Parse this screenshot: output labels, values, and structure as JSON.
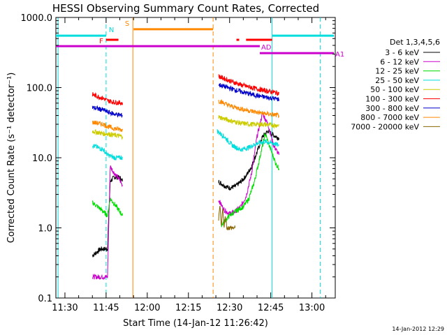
{
  "chart_data": {
    "type": "line",
    "title": "HESSI Observing Summary Count Rates, Corrected",
    "xlabel": "Start Time (14-Jan-12 11:26:42)",
    "ylabel": "Corrected Count Rate (s⁻¹ detector⁻¹)",
    "footer": "14-Jan-2012 12:29",
    "y_scale": "log",
    "ylim": [
      0.1,
      1000
    ],
    "xlim": [
      "11:26:42",
      "13:08:30"
    ],
    "grid": false,
    "legend_position": "right",
    "legend_title": "Det 1,3,4,5,6",
    "x_ticks": [
      "11:30",
      "11:45",
      "12:00",
      "12:15",
      "12:30",
      "12:45",
      "13:00"
    ],
    "y_ticks": [
      "0.1",
      "1.0",
      "10.0",
      "100.0",
      "1000.0"
    ],
    "series": [
      {
        "name": "3 - 6 keV",
        "color": "#000000",
        "segments": [
          {
            "x": [
              "11:40:00",
              "11:43:00",
              "11:44:00",
              "11:45:30",
              "11:46:30",
              "11:48:00",
              "11:50:00",
              "11:51:00"
            ],
            "y": [
              0.4,
              0.5,
              0.5,
              0.5,
              4.6,
              5.3,
              5.2,
              4.6
            ]
          },
          {
            "x": [
              "12:26:00",
              "12:28:00",
              "12:30:00",
              "12:32:00",
              "12:34:00",
              "12:36:00",
              "12:38:00",
              "12:40:00",
              "12:42:00",
              "12:44:00",
              "12:46:00",
              "12:48:00"
            ],
            "y": [
              4.6,
              4.0,
              3.7,
              3.9,
              4.5,
              5.5,
              7.5,
              12,
              20,
              24,
              21,
              19
            ]
          }
        ]
      },
      {
        "name": "6 - 12 keV",
        "color": "#cc00cc",
        "segments": [
          {
            "x": [
              "11:40:00",
              "11:42:00",
              "11:44:00",
              "11:45:30",
              "11:46:30",
              "11:48:00",
              "11:50:00",
              "11:51:00"
            ],
            "y": [
              0.2,
              0.2,
              0.2,
              0.2,
              7.5,
              6.0,
              4.8,
              4.0
            ]
          },
          {
            "x": [
              "12:26:00",
              "12:28:00",
              "12:30:00",
              "12:32:00",
              "12:34:00",
              "12:36:00",
              "12:38:00",
              "12:40:00",
              "12:42:00",
              "12:44:00",
              "12:46:00",
              "12:48:00"
            ],
            "y": [
              2.5,
              1.8,
              1.6,
              1.7,
              2.0,
              2.8,
              6,
              20,
              43,
              30,
              15,
              11
            ]
          }
        ]
      },
      {
        "name": "12 - 25 keV",
        "color": "#00dd00",
        "segments": [
          {
            "x": [
              "11:40:00",
              "11:42:00",
              "11:44:00",
              "11:45:30",
              "11:46:30",
              "11:48:00",
              "11:50:00",
              "11:51:00"
            ],
            "y": [
              2.3,
              2.0,
              1.7,
              1.5,
              2.6,
              2.2,
              1.7,
              1.5
            ]
          },
          {
            "x": [
              "12:27:00",
              "12:30:00",
              "12:33:00",
              "12:35:00",
              "12:37:00",
              "12:39:00",
              "12:41:00",
              "12:43:00",
              "12:45:00",
              "12:47:00",
              "12:48:00"
            ],
            "y": [
              1.1,
              1.5,
              1.8,
              2.0,
              2.6,
              4.5,
              10,
              22,
              13,
              8,
              7
            ]
          }
        ]
      },
      {
        "name": "25 - 50 keV",
        "color": "#00dddd",
        "segments": [
          {
            "x": [
              "11:40:00",
              "11:44:00",
              "11:45:30",
              "11:48:00",
              "11:51:00"
            ],
            "y": [
              15,
              13,
              11,
              10,
              10
            ]
          },
          {
            "x": [
              "12:25:30",
              "12:28:00",
              "12:31:00",
              "12:34:00",
              "12:37:00",
              "12:40:00",
              "12:43:00",
              "12:46:00",
              "12:48:00"
            ],
            "y": [
              24,
              20,
              15,
              13,
              14,
              16,
              17,
              16,
              15
            ]
          }
        ]
      },
      {
        "name": "50 - 100 keV",
        "color": "#cccc00",
        "segments": [
          {
            "x": [
              "11:40:00",
              "11:44:00",
              "11:45:30",
              "11:48:00",
              "11:51:00"
            ],
            "y": [
              24,
              22,
              22,
              21,
              20
            ]
          },
          {
            "x": [
              "12:26:00",
              "12:30:00",
              "12:34:00",
              "12:38:00",
              "12:42:00",
              "12:46:00",
              "12:48:00"
            ],
            "y": [
              38,
              34,
              31,
              30,
              30,
              29,
              29
            ]
          }
        ]
      },
      {
        "name": "100 - 300 keV",
        "color": "#ff0000",
        "segments": [
          {
            "x": [
              "11:40:00",
              "11:44:00",
              "11:45:30",
              "11:48:00",
              "11:51:00"
            ],
            "y": [
              80,
              70,
              65,
              62,
              60
            ]
          },
          {
            "x": [
              "12:26:00",
              "12:30:00",
              "12:34:00",
              "12:38:00",
              "12:42:00",
              "12:46:00",
              "12:48:00"
            ],
            "y": [
              145,
              125,
              110,
              100,
              92,
              86,
              83
            ]
          }
        ]
      },
      {
        "name": "300 - 800 keV",
        "color": "#0000cc",
        "segments": [
          {
            "x": [
              "11:40:00",
              "11:44:00",
              "11:45:30",
              "11:48:00",
              "11:51:00"
            ],
            "y": [
              52,
              48,
              45,
              42,
              40
            ]
          },
          {
            "x": [
              "12:26:00",
              "12:30:00",
              "12:34:00",
              "12:38:00",
              "12:42:00",
              "12:46:00",
              "12:48:00"
            ],
            "y": [
              110,
              98,
              88,
              80,
              74,
              70,
              68
            ]
          }
        ]
      },
      {
        "name": "800 - 7000 keV",
        "color": "#ff8800",
        "segments": [
          {
            "x": [
              "11:40:00",
              "11:44:00",
              "11:45:30",
              "11:48:00",
              "11:51:00"
            ],
            "y": [
              32,
              30,
              28,
              26,
              25
            ]
          },
          {
            "x": [
              "12:26:00",
              "12:30:00",
              "12:34:00",
              "12:38:00",
              "12:42:00",
              "12:46:00",
              "12:48:00"
            ],
            "y": [
              65,
              55,
              50,
              46,
              43,
              41,
              40
            ]
          }
        ]
      },
      {
        "name": "7000 - 20000 keV",
        "color": "#886600",
        "segments": [
          {
            "x": [
              "12:26:00",
              "12:26:30",
              "12:27:00",
              "12:27:30",
              "12:28:00",
              "12:28:30",
              "12:29:00",
              "12:30:00",
              "12:32:00"
            ],
            "y": [
              1.3,
              2.0,
              1.0,
              2.0,
              1.0,
              1.5,
              1.0,
              1.0,
              1.0
            ]
          }
        ]
      }
    ],
    "annotations": [
      {
        "label": "N",
        "color": "#00dddd",
        "x_start": "11:26:42",
        "x_end": "11:45:00",
        "y": 550
      },
      {
        "label": "",
        "color": "#00dddd",
        "x_start": "12:45:30",
        "x_end": "13:08:00",
        "y": 550
      },
      {
        "label": "S",
        "color": "#ff8800",
        "x_start": "11:55:00",
        "x_end": "12:24:00",
        "y": 680
      },
      {
        "label": "F",
        "color": "#ff0000",
        "x_start": "11:45:00",
        "x_end": "11:49:30",
        "y": 480
      },
      {
        "label": "",
        "color": "#ff0000",
        "x_start": "12:32:30",
        "x_end": "12:33:30",
        "y": 480
      },
      {
        "label": "",
        "color": "#ff0000",
        "x_start": "12:36:00",
        "x_end": "12:45:30",
        "y": 480
      },
      {
        "label": "AD",
        "color": "#cc00cc",
        "x_start": "11:26:42",
        "x_end": "12:41:00",
        "y": 390
      },
      {
        "label": "A1",
        "color": "#cc00cc",
        "x_start": "12:41:00",
        "x_end": "13:08:00",
        "y": 310
      }
    ],
    "vertical_lines": [
      {
        "x": "11:27:30",
        "color": "#00dddd",
        "style": "solid"
      },
      {
        "x": "11:45:00",
        "color": "#00dddd",
        "style": "dashed"
      },
      {
        "x": "11:54:45",
        "color": "#ff8800",
        "style": "solid"
      },
      {
        "x": "12:24:00",
        "color": "#ff8800",
        "style": "dashed"
      },
      {
        "x": "12:45:30",
        "color": "#00dddd",
        "style": "solid"
      },
      {
        "x": "13:03:00",
        "color": "#00dddd",
        "style": "dashed"
      }
    ]
  }
}
